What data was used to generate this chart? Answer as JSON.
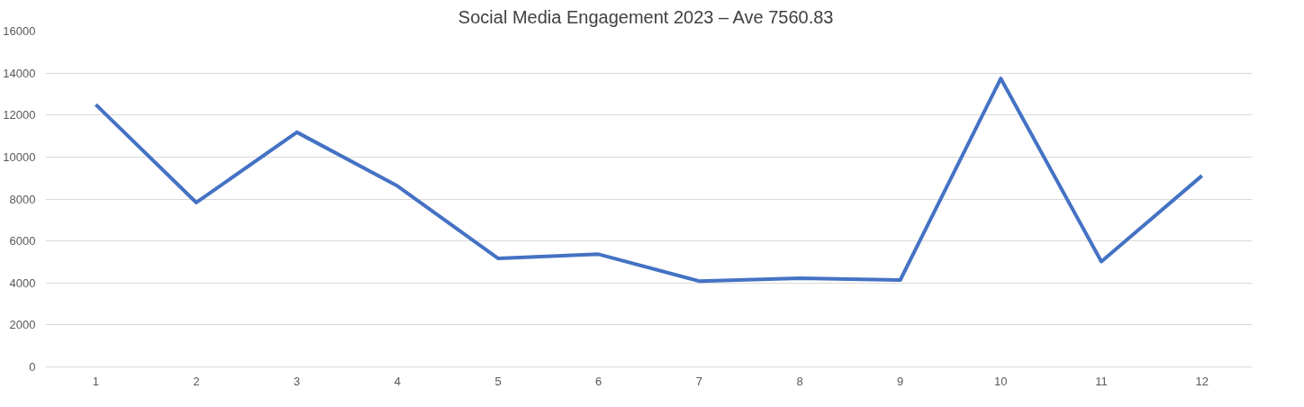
{
  "chart_data": {
    "type": "line",
    "title": "Social Media Engagement  2023 – Ave 7560.83",
    "categories": [
      "1",
      "2",
      "3",
      "4",
      "5",
      "6",
      "7",
      "8",
      "9",
      "10",
      "11",
      "12"
    ],
    "series": [
      {
        "color": "#4472c4",
        "values": [
          12500,
          7830,
          11180,
          8620,
          5170,
          5370,
          4090,
          4230,
          4140,
          13740,
          5020,
          9110
        ]
      }
    ],
    "ylim": [
      0,
      16000
    ],
    "yticks": [
      0,
      2000,
      4000,
      6000,
      8000,
      10000,
      12000,
      14000,
      16000
    ],
    "grid": "y",
    "marker": "none",
    "line_style": "solid"
  }
}
